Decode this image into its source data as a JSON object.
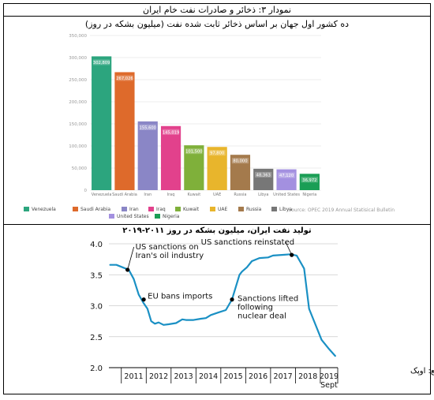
{
  "title": "نمودار ۳: ذخائر و صادرات نفت خام ایران",
  "chart_data": [
    {
      "type": "bar",
      "title": "ده کشور اول جهان بر اساس ذخائر ثابت شده نفت (میلیون بشکه در روز)",
      "categories": [
        "Venezuela",
        "Saudi Arabia",
        "Iran",
        "Iraq",
        "Kuwait",
        "UAE",
        "Russia",
        "Libya",
        "United States",
        "Nigeria"
      ],
      "values": [
        302809,
        267026,
        155600,
        145019,
        101500,
        97800,
        80000,
        48363,
        47120,
        36972
      ],
      "value_labels": [
        "302,809",
        "267,026",
        "155,600",
        "145,019",
        "101,500",
        "97,800",
        "80,000",
        "48,363",
        "47,120",
        "36,972"
      ],
      "colors": [
        "#2ca57e",
        "#de6a2b",
        "#8a86c6",
        "#e2418c",
        "#7fb03a",
        "#e8b52c",
        "#a47a4c",
        "#777777",
        "#a390e0",
        "#1a9e55"
      ],
      "ylim": [
        0,
        350000
      ],
      "yticks": [
        0,
        50000,
        100000,
        150000,
        200000,
        250000,
        300000,
        350000
      ],
      "ytick_labels": [
        "0",
        "50,000",
        "100,000",
        "150,000",
        "200,000",
        "250,000",
        "300,000",
        "350,000"
      ],
      "legend": [
        "Venezuela",
        "Saudi Arabia",
        "Iran",
        "Iraq",
        "Kuwait",
        "UAE",
        "Russia",
        "Libya",
        "United States",
        "Nigeria"
      ],
      "source": "Source: OPEC 2019 Annual Statisical Bulletin"
    },
    {
      "type": "line",
      "title": "تولید نفت ایران، میلیون بشکه در روز ۲۰۱۱-۲۰۱۹",
      "x": [
        2010.55,
        2010.8,
        2011.05,
        2011.3,
        2011.5,
        2011.7,
        2011.9,
        2012.05,
        2012.2,
        2012.35,
        2012.5,
        2012.7,
        2012.9,
        2013.2,
        2013.45,
        2013.6,
        2013.9,
        2014.2,
        2014.4,
        2014.6,
        2014.9,
        2015.2,
        2015.45,
        2015.75,
        2015.85,
        2016.05,
        2016.25,
        2016.55,
        2016.9,
        2017.1,
        2017.45,
        2017.8,
        2018.05,
        2018.35,
        2018.55,
        2018.8,
        2019.05,
        2019.35,
        2019.6
      ],
      "y": [
        3.66,
        3.66,
        3.62,
        3.58,
        3.43,
        3.18,
        3.04,
        2.95,
        2.75,
        2.71,
        2.73,
        2.69,
        2.7,
        2.72,
        2.78,
        2.77,
        2.77,
        2.79,
        2.8,
        2.85,
        2.89,
        2.93,
        3.1,
        3.5,
        3.55,
        3.62,
        3.72,
        3.77,
        3.78,
        3.81,
        3.82,
        3.83,
        3.81,
        3.6,
        2.95,
        2.7,
        2.45,
        2.3,
        2.19
      ],
      "ylim": [
        2.0,
        4.0
      ],
      "yticks": [
        "2.0",
        "2.5",
        "3.0",
        "3.5",
        "4.0"
      ],
      "xlim": [
        2010.5,
        2019.7
      ],
      "xticks": [
        "2011",
        "2012",
        "2013",
        "2014",
        "2015",
        "2016",
        "2017",
        "2018",
        "2019"
      ],
      "xtick_sub": "Sept",
      "color": "#1a90c4",
      "annotations": [
        {
          "label": "US sanctions on\nIran's oil industry",
          "x": 2011.25,
          "y": 3.58
        },
        {
          "label": "EU bans imports",
          "x": 2011.9,
          "y": 3.1
        },
        {
          "label": "Sanctions lifted\nfollowing\nnuclear deal",
          "x": 2015.45,
          "y": 3.1
        },
        {
          "label": "US sanctions reinstated",
          "x": 2017.85,
          "y": 3.82
        }
      ],
      "source": "منبع: اوپک"
    }
  ]
}
